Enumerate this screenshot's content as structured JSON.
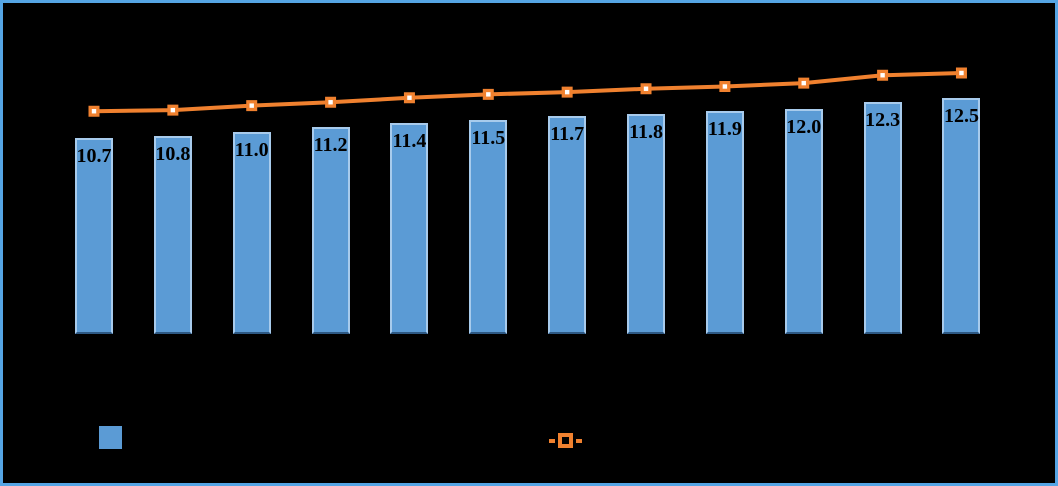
{
  "title": "",
  "colors": {
    "background": "#000000",
    "frame_border": "#55A5E4",
    "bar_fill": "#5B9BD5",
    "bar_edge_light": "#A8CBEC",
    "bar_edge_bottom": "#2E5984",
    "line_orange": "#F0812F",
    "marker_center": "#FFFFFF",
    "data_label_text": "#000000"
  },
  "chart_data": {
    "type": "bar",
    "title": "",
    "xlabel": "",
    "ylabel": "",
    "categories": [
      "",
      "",
      "",
      "",
      "",
      "",
      "",
      "",
      "",
      "",
      "",
      ""
    ],
    "series": [
      {
        "name": "",
        "type": "bar",
        "values": [
          10.7,
          10.8,
          11.0,
          11.2,
          11.4,
          11.5,
          11.7,
          11.8,
          11.9,
          12.0,
          12.3,
          12.5
        ],
        "data_labels": [
          "10.7",
          "10.8",
          "11.0",
          "11.2",
          "11.4",
          "11.5",
          "11.7",
          "11.8",
          "11.9",
          "12.0",
          "12.3",
          "12.5"
        ]
      },
      {
        "name": "",
        "type": "line",
        "marker": "square-white-center",
        "values_estimated": [
          11.9,
          11.95,
          12.15,
          12.3,
          12.5,
          12.65,
          12.75,
          12.9,
          13.0,
          13.15,
          13.5,
          13.6
        ]
      }
    ],
    "ylim": [
      2,
      15.5
    ],
    "grid": false,
    "axes_visible": false,
    "legend_position": "bottom"
  },
  "legend": {
    "items": [
      {
        "swatch": "blue-square",
        "label": ""
      },
      {
        "swatch": "orange-line-with-square-marker",
        "label": ""
      }
    ]
  }
}
